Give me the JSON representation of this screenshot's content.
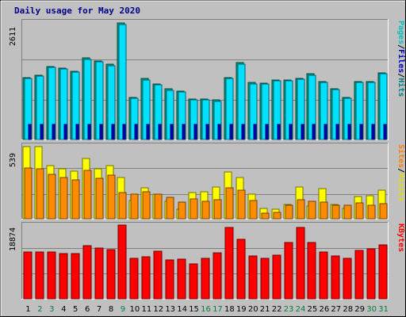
{
  "chart_data": [
    {
      "type": "bar",
      "title": "Daily usage for May 2020",
      "categories": [
        "1",
        "2",
        "3",
        "4",
        "5",
        "6",
        "7",
        "8",
        "9",
        "10",
        "11",
        "12",
        "13",
        "14",
        "15",
        "16",
        "17",
        "18",
        "19",
        "20",
        "21",
        "22",
        "23",
        "24",
        "25",
        "26",
        "27",
        "28",
        "29",
        "30",
        "31"
      ],
      "weekend_days": [
        "2",
        "3",
        "9",
        "16",
        "17",
        "23",
        "24",
        "30",
        "31"
      ],
      "ylim": [
        0,
        2611
      ],
      "y_max_label": "2611",
      "right_label": {
        "parts": [
          "Pages",
          "Files",
          "Hits"
        ],
        "separator": " / "
      },
      "series": [
        {
          "name": "Hits",
          "color": "#00a080",
          "values": [
            1390,
            1440,
            1640,
            1600,
            1530,
            1830,
            1760,
            1690,
            2611,
            950,
            1360,
            1250,
            1130,
            1080,
            900,
            900,
            880,
            1390,
            1720,
            1280,
            1260,
            1330,
            1330,
            1370,
            1470,
            1290,
            1140,
            950,
            1300,
            1300,
            1500
          ]
        },
        {
          "name": "Files",
          "color": "#00e0ff",
          "values": [
            1360,
            1420,
            1620,
            1580,
            1510,
            1800,
            1740,
            1660,
            2580,
            930,
            1330,
            1230,
            1110,
            1060,
            880,
            880,
            860,
            1360,
            1690,
            1250,
            1240,
            1310,
            1310,
            1350,
            1440,
            1270,
            1120,
            930,
            1270,
            1280,
            1480
          ]
        },
        {
          "name": "Pages",
          "color": "#0000d0",
          "values": [
            330,
            330,
            330,
            330,
            330,
            330,
            330,
            330,
            330,
            330,
            330,
            330,
            330,
            330,
            330,
            330,
            330,
            330,
            330,
            330,
            330,
            330,
            330,
            330,
            330,
            330,
            330,
            330,
            330,
            330,
            330
          ]
        }
      ]
    },
    {
      "type": "bar",
      "categories": [
        "1",
        "2",
        "3",
        "4",
        "5",
        "6",
        "7",
        "8",
        "9",
        "10",
        "11",
        "12",
        "13",
        "14",
        "15",
        "16",
        "17",
        "18",
        "19",
        "20",
        "21",
        "22",
        "23",
        "24",
        "25",
        "26",
        "27",
        "28",
        "29",
        "30",
        "31"
      ],
      "ylim": [
        0,
        539
      ],
      "y_max_label": "539",
      "right_label": {
        "parts": [
          "Sites",
          "Visits"
        ],
        "separator": " / "
      },
      "series": [
        {
          "name": "Visits",
          "color": "#ffff00",
          "values": [
            539,
            539,
            399,
            374,
            357,
            448,
            374,
            396,
            306,
            138,
            230,
            181,
            133,
            69,
            198,
            202,
            234,
            351,
            306,
            181,
            79,
            69,
            107,
            234,
            94,
            224,
            106,
            78,
            165,
            169,
            216
          ]
        },
        {
          "name": "Sites",
          "color": "#ff8c00",
          "values": [
            381,
            374,
            330,
            309,
            290,
            364,
            300,
            328,
            194,
            184,
            201,
            181,
            160,
            127,
            149,
            128,
            144,
            229,
            211,
            136,
            41,
            50,
            98,
            141,
            131,
            124,
            98,
            103,
            117,
            103,
            115
          ]
        }
      ]
    },
    {
      "type": "bar",
      "categories": [
        "1",
        "2",
        "3",
        "4",
        "5",
        "6",
        "7",
        "8",
        "9",
        "10",
        "11",
        "12",
        "13",
        "14",
        "15",
        "16",
        "17",
        "18",
        "19",
        "20",
        "21",
        "22",
        "23",
        "24",
        "25",
        "26",
        "27",
        "28",
        "29",
        "30",
        "31"
      ],
      "ylim": [
        0,
        18874
      ],
      "y_max_label": "18874",
      "right_label": {
        "parts": [
          "KBytes"
        ],
        "separator": ""
      },
      "series": [
        {
          "name": "KBytes",
          "color": "#ff0000",
          "values": [
            12200,
            12200,
            12200,
            11700,
            11700,
            13700,
            13200,
            12800,
            19000,
            10500,
            10800,
            12300,
            10000,
            10200,
            9100,
            10500,
            12000,
            18500,
            15300,
            11000,
            10500,
            11200,
            14600,
            18500,
            14500,
            12200,
            11000,
            10500,
            12500,
            12900,
            14000
          ]
        }
      ]
    }
  ]
}
